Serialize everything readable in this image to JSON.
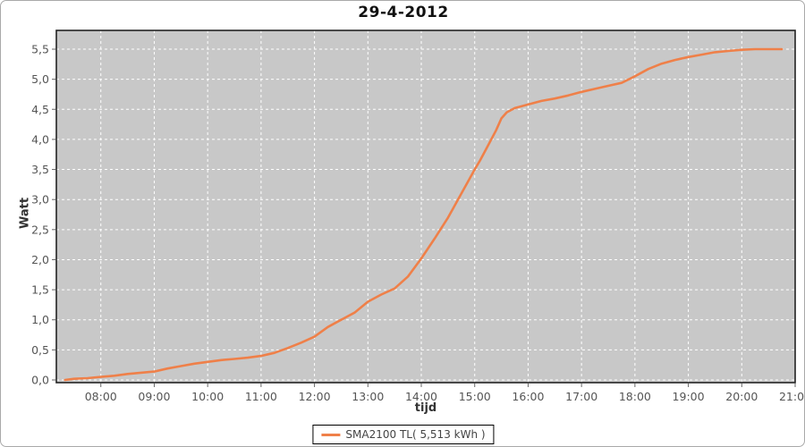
{
  "window": {
    "background": "#ffffff",
    "border_color": "#a9a9a9"
  },
  "colors": {
    "plot_background": "#c8c8c8",
    "gridline": "#ffffff",
    "plot_border": "#222222",
    "axis_line": "#666666",
    "tick_mark": "#666666",
    "tick_label": "#555555",
    "title_text": "#111111",
    "axis_title_text": "#333333",
    "series_line": "#ef8049"
  },
  "chart_data": {
    "type": "line",
    "title": "29-4-2012",
    "xlabel": "tijd",
    "ylabel": "Watt",
    "grid": true,
    "xlim_hours": [
      7.167,
      21
    ],
    "ylim": [
      0,
      5.5
    ],
    "x_ticks": [
      {
        "hour": 8,
        "label": "08:00"
      },
      {
        "hour": 9,
        "label": "09:00"
      },
      {
        "hour": 10,
        "label": "10:00"
      },
      {
        "hour": 11,
        "label": "11:00"
      },
      {
        "hour": 12,
        "label": "12:00"
      },
      {
        "hour": 13,
        "label": "13:00"
      },
      {
        "hour": 14,
        "label": "14:00"
      },
      {
        "hour": 15,
        "label": "15:00"
      },
      {
        "hour": 16,
        "label": "16:00"
      },
      {
        "hour": 17,
        "label": "17:00"
      },
      {
        "hour": 18,
        "label": "18:00"
      },
      {
        "hour": 19,
        "label": "19:00"
      },
      {
        "hour": 20,
        "label": "20:00"
      },
      {
        "hour": 21,
        "label": "21:00"
      }
    ],
    "y_ticks": [
      {
        "value": 0.0,
        "label": "0,0"
      },
      {
        "value": 0.5,
        "label": "0,5"
      },
      {
        "value": 1.0,
        "label": "1,0"
      },
      {
        "value": 1.5,
        "label": "1,5"
      },
      {
        "value": 2.0,
        "label": "2,0"
      },
      {
        "value": 2.5,
        "label": "2,5"
      },
      {
        "value": 3.0,
        "label": "3,0"
      },
      {
        "value": 3.5,
        "label": "3,5"
      },
      {
        "value": 4.0,
        "label": "4,0"
      },
      {
        "value": 4.5,
        "label": "4,5"
      },
      {
        "value": 5.0,
        "label": "5,0"
      },
      {
        "value": 5.5,
        "label": "5,5"
      }
    ],
    "legend": {
      "label": "SMA2100 TL( 5,513 kWh )",
      "position": "bottom",
      "swatch_color": "#ef8049"
    },
    "series": [
      {
        "name": "SMA2100 TL",
        "color": "#ef8049",
        "points": [
          [
            7.33,
            0.0
          ],
          [
            7.5,
            0.02
          ],
          [
            7.75,
            0.03
          ],
          [
            8.0,
            0.05
          ],
          [
            8.25,
            0.07
          ],
          [
            8.5,
            0.1
          ],
          [
            8.75,
            0.12
          ],
          [
            9.0,
            0.14
          ],
          [
            9.25,
            0.19
          ],
          [
            9.5,
            0.23
          ],
          [
            9.75,
            0.27
          ],
          [
            10.0,
            0.3
          ],
          [
            10.25,
            0.33
          ],
          [
            10.5,
            0.35
          ],
          [
            10.75,
            0.37
          ],
          [
            11.0,
            0.4
          ],
          [
            11.25,
            0.45
          ],
          [
            11.5,
            0.53
          ],
          [
            11.75,
            0.62
          ],
          [
            12.0,
            0.72
          ],
          [
            12.25,
            0.88
          ],
          [
            12.5,
            1.0
          ],
          [
            12.75,
            1.12
          ],
          [
            13.0,
            1.3
          ],
          [
            13.25,
            1.42
          ],
          [
            13.5,
            1.52
          ],
          [
            13.75,
            1.72
          ],
          [
            14.0,
            2.02
          ],
          [
            14.25,
            2.35
          ],
          [
            14.5,
            2.7
          ],
          [
            14.75,
            3.1
          ],
          [
            15.0,
            3.5
          ],
          [
            15.1,
            3.65
          ],
          [
            15.25,
            3.9
          ],
          [
            15.4,
            4.15
          ],
          [
            15.5,
            4.35
          ],
          [
            15.6,
            4.45
          ],
          [
            15.75,
            4.52
          ],
          [
            16.0,
            4.58
          ],
          [
            16.25,
            4.64
          ],
          [
            16.5,
            4.68
          ],
          [
            16.75,
            4.73
          ],
          [
            17.0,
            4.79
          ],
          [
            17.25,
            4.84
          ],
          [
            17.5,
            4.89
          ],
          [
            17.75,
            4.94
          ],
          [
            18.0,
            5.05
          ],
          [
            18.25,
            5.17
          ],
          [
            18.5,
            5.26
          ],
          [
            18.75,
            5.32
          ],
          [
            19.0,
            5.37
          ],
          [
            19.25,
            5.41
          ],
          [
            19.5,
            5.45
          ],
          [
            19.75,
            5.47
          ],
          [
            20.0,
            5.49
          ],
          [
            20.25,
            5.5
          ],
          [
            20.5,
            5.5
          ],
          [
            20.75,
            5.5
          ]
        ]
      }
    ]
  }
}
